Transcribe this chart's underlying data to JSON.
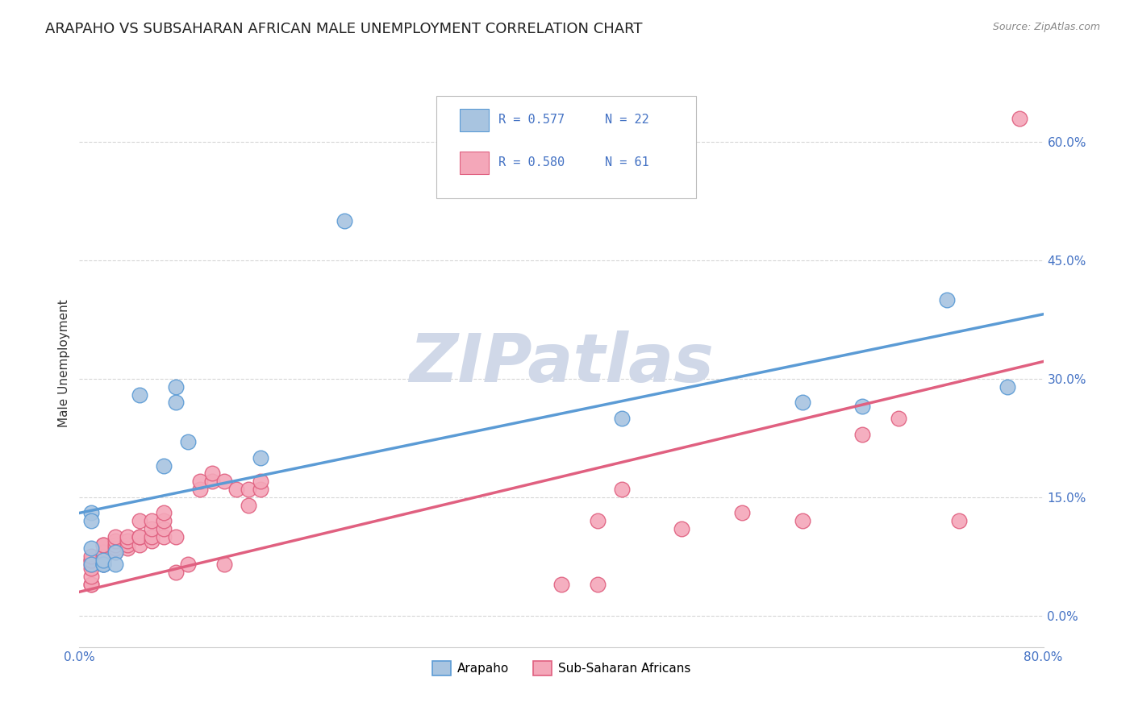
{
  "title": "ARAPAHO VS SUBSAHARAN AFRICAN MALE UNEMPLOYMENT CORRELATION CHART",
  "source": "Source: ZipAtlas.com",
  "ylabel": "Male Unemployment",
  "watermark": "ZIPatlas",
  "legend_bottom": [
    "Arapaho",
    "Sub-Saharan Africans"
  ],
  "arapaho_points": [
    [
      0.01,
      0.13
    ],
    [
      0.01,
      0.12
    ],
    [
      0.01,
      0.085
    ],
    [
      0.01,
      0.065
    ],
    [
      0.02,
      0.065
    ],
    [
      0.02,
      0.065
    ],
    [
      0.02,
      0.065
    ],
    [
      0.02,
      0.07
    ],
    [
      0.03,
      0.08
    ],
    [
      0.03,
      0.065
    ],
    [
      0.05,
      0.28
    ],
    [
      0.07,
      0.19
    ],
    [
      0.08,
      0.29
    ],
    [
      0.08,
      0.27
    ],
    [
      0.09,
      0.22
    ],
    [
      0.15,
      0.2
    ],
    [
      0.22,
      0.5
    ],
    [
      0.45,
      0.25
    ],
    [
      0.6,
      0.27
    ],
    [
      0.65,
      0.265
    ],
    [
      0.72,
      0.4
    ],
    [
      0.77,
      0.29
    ]
  ],
  "subsaharan_points": [
    [
      0.01,
      0.04
    ],
    [
      0.01,
      0.04
    ],
    [
      0.01,
      0.05
    ],
    [
      0.01,
      0.06
    ],
    [
      0.01,
      0.065
    ],
    [
      0.01,
      0.07
    ],
    [
      0.01,
      0.07
    ],
    [
      0.01,
      0.075
    ],
    [
      0.02,
      0.065
    ],
    [
      0.02,
      0.07
    ],
    [
      0.02,
      0.075
    ],
    [
      0.02,
      0.08
    ],
    [
      0.02,
      0.08
    ],
    [
      0.02,
      0.09
    ],
    [
      0.02,
      0.09
    ],
    [
      0.03,
      0.08
    ],
    [
      0.03,
      0.085
    ],
    [
      0.03,
      0.09
    ],
    [
      0.03,
      0.095
    ],
    [
      0.03,
      0.1
    ],
    [
      0.04,
      0.085
    ],
    [
      0.04,
      0.09
    ],
    [
      0.04,
      0.095
    ],
    [
      0.04,
      0.1
    ],
    [
      0.05,
      0.09
    ],
    [
      0.05,
      0.1
    ],
    [
      0.05,
      0.1
    ],
    [
      0.05,
      0.12
    ],
    [
      0.06,
      0.095
    ],
    [
      0.06,
      0.1
    ],
    [
      0.06,
      0.11
    ],
    [
      0.06,
      0.12
    ],
    [
      0.07,
      0.1
    ],
    [
      0.07,
      0.11
    ],
    [
      0.07,
      0.12
    ],
    [
      0.07,
      0.13
    ],
    [
      0.08,
      0.055
    ],
    [
      0.08,
      0.1
    ],
    [
      0.09,
      0.065
    ],
    [
      0.1,
      0.16
    ],
    [
      0.1,
      0.17
    ],
    [
      0.11,
      0.17
    ],
    [
      0.11,
      0.18
    ],
    [
      0.12,
      0.17
    ],
    [
      0.12,
      0.065
    ],
    [
      0.13,
      0.16
    ],
    [
      0.14,
      0.16
    ],
    [
      0.14,
      0.14
    ],
    [
      0.15,
      0.16
    ],
    [
      0.15,
      0.17
    ],
    [
      0.4,
      0.04
    ],
    [
      0.43,
      0.04
    ],
    [
      0.43,
      0.12
    ],
    [
      0.45,
      0.16
    ],
    [
      0.5,
      0.11
    ],
    [
      0.55,
      0.13
    ],
    [
      0.6,
      0.12
    ],
    [
      0.65,
      0.23
    ],
    [
      0.68,
      0.25
    ],
    [
      0.73,
      0.12
    ],
    [
      0.78,
      0.63
    ]
  ],
  "arapaho_color": "#5b9bd5",
  "arapaho_fill": "#a8c4e0",
  "subsaharan_color": "#e06080",
  "subsaharan_fill": "#f4a7b9",
  "arapaho_line_intercept": 0.13,
  "arapaho_line_slope": 0.315,
  "subsaharan_line_intercept": 0.03,
  "subsaharan_line_slope": 0.365,
  "xlim": [
    0.0,
    0.8
  ],
  "ylim": [
    -0.04,
    0.68
  ],
  "x_ticks": [
    0.0,
    0.8
  ],
  "y_ticks": [
    0.0,
    0.15,
    0.3,
    0.45,
    0.6
  ],
  "background": "#ffffff",
  "grid_color": "#cccccc",
  "title_fontsize": 13,
  "source_fontsize": 9,
  "axis_label_fontsize": 11,
  "tick_fontsize": 11,
  "watermark_color": "#d0d8e8",
  "watermark_fontsize": 60,
  "legend_R1": "R = 0.577",
  "legend_N1": "N = 22",
  "legend_R2": "R = 0.580",
  "legend_N2": "N = 61"
}
